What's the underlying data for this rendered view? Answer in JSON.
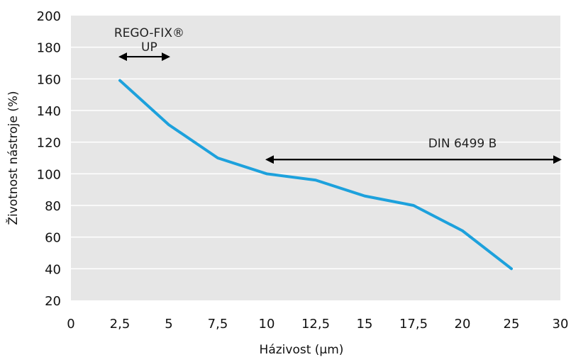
{
  "chart_data": {
    "type": "line",
    "xlabel": "Házivost (µm)",
    "ylabel": "Životnost nástroje (%)",
    "x_ticks": [
      {
        "value": 0,
        "label": "0"
      },
      {
        "value": 2.5,
        "label": "2,5"
      },
      {
        "value": 5,
        "label": "5"
      },
      {
        "value": 7.5,
        "label": "7,5"
      },
      {
        "value": 10,
        "label": "10"
      },
      {
        "value": 12.5,
        "label": "12,5"
      },
      {
        "value": 15,
        "label": "15"
      },
      {
        "value": 17.5,
        "label": "17,5"
      },
      {
        "value": 20,
        "label": "20"
      },
      {
        "value": 25,
        "label": "25"
      },
      {
        "value": 30,
        "label": "30"
      }
    ],
    "y_ticks": [
      {
        "value": 20,
        "label": "20"
      },
      {
        "value": 40,
        "label": "40"
      },
      {
        "value": 60,
        "label": "60"
      },
      {
        "value": 80,
        "label": "80"
      },
      {
        "value": 100,
        "label": "100"
      },
      {
        "value": 120,
        "label": "120"
      },
      {
        "value": 140,
        "label": "140"
      },
      {
        "value": 160,
        "label": "160"
      },
      {
        "value": 180,
        "label": "180"
      },
      {
        "value": 200,
        "label": "200"
      }
    ],
    "ylim": [
      20,
      200
    ],
    "grid": true,
    "background_color": "#e6e6e6",
    "grid_color": "#ffffff",
    "line_color": "#1da1dc",
    "arrow_color": "#000000",
    "series": [
      {
        "points": [
          {
            "x": "2,5",
            "y": 159
          },
          {
            "x": "5",
            "y": 131
          },
          {
            "x": "7,5",
            "y": 110
          },
          {
            "x": "10",
            "y": 100
          },
          {
            "x": "12,5",
            "y": 96
          },
          {
            "x": "15",
            "y": 86
          },
          {
            "x": "17,5",
            "y": 80
          },
          {
            "x": "20",
            "y": 64
          },
          {
            "x": "25",
            "y": 40
          }
        ]
      }
    ],
    "annotations": [
      {
        "lines": [
          "REGO-FIX®",
          "UP"
        ],
        "arrow": {
          "from": "2,5",
          "to": "5",
          "y": 174
        },
        "label_x": "4"
      },
      {
        "lines": [
          "DIN 6499 B"
        ],
        "arrow": {
          "from": "10",
          "to": "30",
          "y": 109
        },
        "label_x": "20"
      }
    ]
  }
}
